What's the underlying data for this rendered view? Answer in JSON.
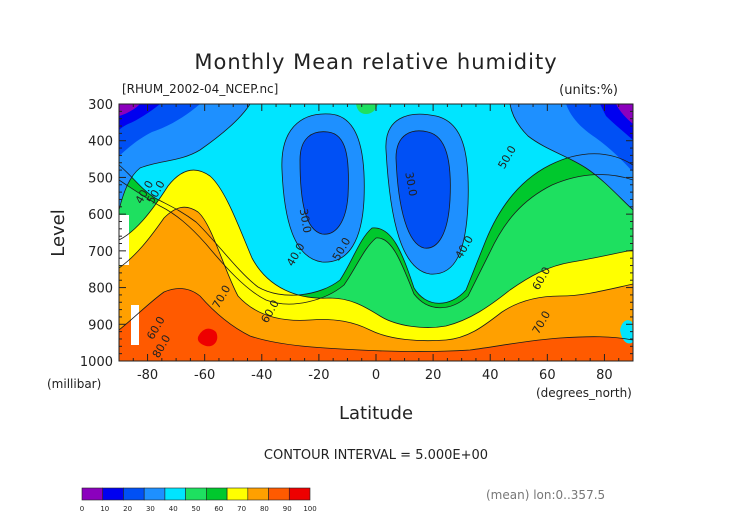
{
  "chart_data": {
    "type": "heatmap",
    "title": "Monthly Mean relative humidity",
    "subtitle_left": "[RHUM_2002-04_NCEP.nc]",
    "subtitle_right": "(units:%)",
    "xlabel": "Latitude",
    "xunit": "(degrees_north)",
    "ylabel": "Level",
    "yunit": "(millibar)",
    "xlim": [
      -90,
      90
    ],
    "ylim": [
      1000,
      300
    ],
    "xticks": [
      "-80",
      "-60",
      "-40",
      "-20",
      "0",
      "20",
      "40",
      "60",
      "80"
    ],
    "yticks": [
      "300",
      "400",
      "500",
      "600",
      "700",
      "800",
      "900",
      "1000"
    ],
    "contour_interval_text": "CONTOUR INTERVAL = 5.000E+00",
    "footnote": "(mean) lon:0..357.5",
    "contour_labels": [
      {
        "text": "40.0",
        "lat": -80,
        "level": 545
      },
      {
        "text": "50.0",
        "lat": -76,
        "level": 545
      },
      {
        "text": "30.0",
        "lat": -26,
        "level": 620
      },
      {
        "text": "40.0",
        "lat": -27,
        "level": 715
      },
      {
        "text": "50.0",
        "lat": -11,
        "level": 700
      },
      {
        "text": "30.0",
        "lat": 11,
        "level": 520
      },
      {
        "text": "40.0",
        "lat": 32,
        "level": 695
      },
      {
        "text": "50.0",
        "lat": 47,
        "level": 450
      },
      {
        "text": "60.0",
        "lat": 59,
        "level": 780
      },
      {
        "text": "70.0",
        "lat": -53,
        "level": 830
      },
      {
        "text": "60.0",
        "lat": -36,
        "level": 870
      },
      {
        "text": "70.0",
        "lat": 59,
        "level": 900
      },
      {
        "text": "60.0",
        "lat": -76,
        "level": 915
      },
      {
        "text": "80.0",
        "lat": -74,
        "level": 965
      }
    ],
    "colorbar": {
      "labels": [
        "0",
        "10",
        "20",
        "30",
        "40",
        "50",
        "60",
        "70",
        "80",
        "90",
        "100"
      ],
      "colors": [
        "#8b00bd",
        "#0000f0",
        "#0050f5",
        "#1e90ff",
        "#00e5ff",
        "#1ee060",
        "#00c82d",
        "#ffff00",
        "#ffa000",
        "#ff5a00",
        "#ee0000"
      ]
    }
  }
}
